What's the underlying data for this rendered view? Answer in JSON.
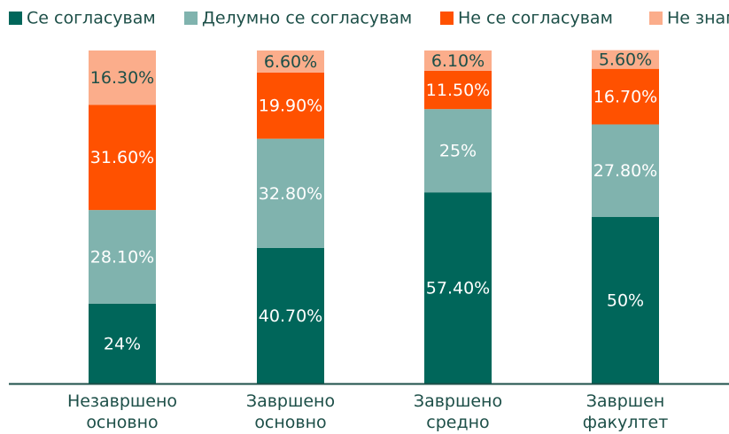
{
  "chart_data": {
    "type": "stacked_bar",
    "categories": [
      "Незавршено основно",
      "Завршено основно",
      "Завршено средно",
      "Завршен факултет"
    ],
    "series": [
      {
        "name": "Се согласувам",
        "color": "#00665a",
        "values": [
          24,
          40.7,
          57.4,
          50
        ],
        "value_labels": [
          "24%",
          "40.70%",
          "57.40%",
          "50%"
        ]
      },
      {
        "name": "Делумно се согласувам",
        "color": "#80b3ae",
        "values": [
          28.1,
          32.8,
          25,
          27.8
        ],
        "value_labels": [
          "28.10%",
          "32.80%",
          "25%",
          "27.80%"
        ]
      },
      {
        "name": "Не се согласувам",
        "color": "#ff5100",
        "values": [
          31.6,
          19.9,
          11.5,
          16.7
        ],
        "value_labels": [
          "31.60%",
          "19.90%",
          "11.50%",
          "16.70%"
        ]
      },
      {
        "name": "Не знам",
        "color": "#fbad8b",
        "values": [
          16.3,
          6.6,
          6.1,
          5.6
        ],
        "value_labels": [
          "16.30%",
          "6.60%",
          "6.10%",
          "5.60%"
        ]
      }
    ],
    "ylim": [
      0,
      100
    ],
    "legend": "top"
  }
}
